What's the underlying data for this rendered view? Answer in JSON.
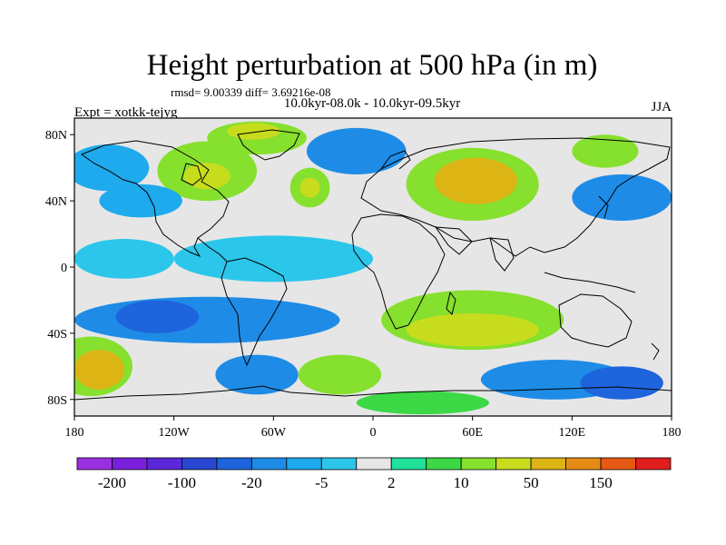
{
  "header": {
    "title": "Height perturbation at 500 hPa (in m)",
    "stats": "rmsd= 9.00339 diff= 3.69216e-08",
    "period": "10.0kyr-08.0k - 10.0kyr-09.5kyr",
    "expt": "Expt = xotkk-tejyg",
    "season": "JJA"
  },
  "chart_data": {
    "type": "heatmap",
    "title": "Height perturbation at 500 hPa (in m)",
    "units": "m",
    "projection": "cylindrical-equidistant",
    "lon_range": [
      -180,
      180
    ],
    "lat_range": [
      -90,
      90
    ],
    "x_ticks": [
      {
        "value": -180,
        "label": "180"
      },
      {
        "value": -120,
        "label": "120W"
      },
      {
        "value": -60,
        "label": "60W"
      },
      {
        "value": 0,
        "label": "0"
      },
      {
        "value": 60,
        "label": "60E"
      },
      {
        "value": 120,
        "label": "120E"
      },
      {
        "value": 180,
        "label": "180"
      }
    ],
    "y_ticks": [
      {
        "value": 80,
        "label": "80N"
      },
      {
        "value": 40,
        "label": "40N"
      },
      {
        "value": 0,
        "label": "0"
      },
      {
        "value": -40,
        "label": "40S"
      },
      {
        "value": -80,
        "label": "80S"
      }
    ],
    "colorbar": {
      "colors": [
        "#9b30e0",
        "#7a20dc",
        "#5a28d8",
        "#2846d0",
        "#1e64dc",
        "#1e8ce6",
        "#1eaaec",
        "#2cc6ea",
        "#e6e6e6",
        "#20e09a",
        "#3cd846",
        "#86e02e",
        "#c8dc1e",
        "#dcb414",
        "#e68c14",
        "#e65a14",
        "#e01e1e"
      ],
      "labels": [
        {
          "after": 1,
          "text": "-200"
        },
        {
          "after": 3,
          "text": "-100"
        },
        {
          "after": 5,
          "text": "-20"
        },
        {
          "after": 7,
          "text": "-5"
        },
        {
          "after": 9,
          "text": "2"
        },
        {
          "after": 11,
          "text": "10"
        },
        {
          "after": 13,
          "text": "50"
        },
        {
          "after": 15,
          "text": "150"
        }
      ]
    },
    "regions": [
      {
        "name": "arctic-greenland-positive",
        "lon": -70,
        "lat": 78,
        "rx": 30,
        "ry": 10,
        "level": 11
      },
      {
        "name": "arctic-greenland-core",
        "lon": -72,
        "lat": 82,
        "rx": 16,
        "ry": 5,
        "level": 12
      },
      {
        "name": "north-pacific-negative",
        "lon": -160,
        "lat": 60,
        "rx": 25,
        "ry": 14,
        "level": 6
      },
      {
        "name": "north-america-positive",
        "lon": -100,
        "lat": 58,
        "rx": 30,
        "ry": 18,
        "level": 11
      },
      {
        "name": "north-america-core",
        "lon": -100,
        "lat": 55,
        "rx": 14,
        "ry": 8,
        "level": 12
      },
      {
        "name": "west-north-america-negative",
        "lon": -140,
        "lat": 40,
        "rx": 25,
        "ry": 10,
        "level": 6
      },
      {
        "name": "north-atlantic-negative",
        "lon": -10,
        "lat": 70,
        "rx": 30,
        "ry": 14,
        "level": 5
      },
      {
        "name": "mid-atlantic-positive",
        "lon": -38,
        "lat": 48,
        "rx": 12,
        "ry": 12,
        "level": 11
      },
      {
        "name": "mid-atlantic-core",
        "lon": -38,
        "lat": 48,
        "rx": 6,
        "ry": 6,
        "level": 12
      },
      {
        "name": "eurasia-positive",
        "lon": 60,
        "lat": 50,
        "rx": 40,
        "ry": 22,
        "level": 11
      },
      {
        "name": "central-asia-maximum",
        "lon": 62,
        "lat": 52,
        "rx": 25,
        "ry": 14,
        "level": 13
      },
      {
        "name": "east-asia-negative",
        "lon": 150,
        "lat": 42,
        "rx": 30,
        "ry": 14,
        "level": 5
      },
      {
        "name": "siberia-positive",
        "lon": 140,
        "lat": 70,
        "rx": 20,
        "ry": 10,
        "level": 11
      },
      {
        "name": "tropical-atlantic-negative",
        "lon": -60,
        "lat": 5,
        "rx": 60,
        "ry": 14,
        "level": 7
      },
      {
        "name": "tropical-pacific-negative",
        "lon": -150,
        "lat": 5,
        "rx": 30,
        "ry": 12,
        "level": 7
      },
      {
        "name": "south-pacific-negative-band",
        "lon": -100,
        "lat": -32,
        "rx": 80,
        "ry": 14,
        "level": 5
      },
      {
        "name": "south-pacific-strong-negative",
        "lon": -130,
        "lat": -30,
        "rx": 25,
        "ry": 10,
        "level": 4
      },
      {
        "name": "south-indian-positive",
        "lon": 60,
        "lat": -32,
        "rx": 55,
        "ry": 18,
        "level": 11
      },
      {
        "name": "south-indian-core",
        "lon": 60,
        "lat": -38,
        "rx": 40,
        "ry": 10,
        "level": 12
      },
      {
        "name": "south-pacific-high-lat-positive",
        "lon": -170,
        "lat": -60,
        "rx": 25,
        "ry": 18,
        "level": 11
      },
      {
        "name": "south-pacific-maximum",
        "lon": -165,
        "lat": -62,
        "rx": 15,
        "ry": 12,
        "level": 13
      },
      {
        "name": "drake-negative",
        "lon": -70,
        "lat": -65,
        "rx": 25,
        "ry": 12,
        "level": 5
      },
      {
        "name": "south-atlantic-positive",
        "lon": -20,
        "lat": -65,
        "rx": 25,
        "ry": 12,
        "level": 11
      },
      {
        "name": "southern-ocean-negative",
        "lon": 110,
        "lat": -68,
        "rx": 45,
        "ry": 12,
        "level": 5
      },
      {
        "name": "antarctic-negative",
        "lon": 150,
        "lat": -70,
        "rx": 25,
        "ry": 10,
        "level": 4
      },
      {
        "name": "antarctic-positive",
        "lon": 30,
        "lat": -82,
        "rx": 40,
        "ry": 7,
        "level": 10
      }
    ]
  }
}
